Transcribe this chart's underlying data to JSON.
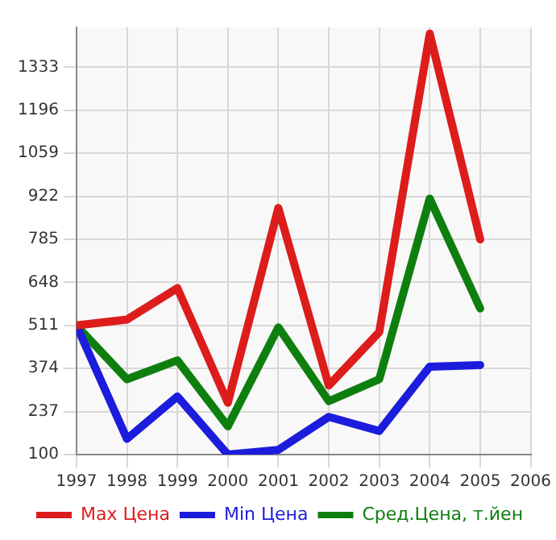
{
  "chart_data": {
    "type": "line",
    "x": [
      1997,
      1998,
      1999,
      2000,
      2001,
      2002,
      2003,
      2004,
      2005
    ],
    "series": [
      {
        "name": "Max Цена",
        "color": "#dd1c1c",
        "values": [
          511,
          530,
          630,
          265,
          885,
          320,
          490,
          1440,
          785
        ]
      },
      {
        "name": "Min Цена",
        "color": "#1c1cdd",
        "values": [
          511,
          150,
          285,
          100,
          115,
          220,
          175,
          380,
          385
        ]
      },
      {
        "name": "Сред.Цена, т.йен",
        "color": "#0e7f0e",
        "values": [
          511,
          340,
          400,
          190,
          505,
          270,
          340,
          915,
          565
        ]
      }
    ],
    "xlim": [
      1997,
      2006
    ],
    "xticks": [
      1997,
      1998,
      1999,
      2000,
      2001,
      2002,
      2003,
      2004,
      2005,
      2006
    ],
    "ylim": [
      100,
      1460
    ],
    "yticks": [
      100,
      237,
      374,
      511,
      648,
      785,
      922,
      1059,
      1196,
      1333
    ],
    "grid": true,
    "legend": "bottom",
    "marker": "none",
    "line_style": "solid"
  }
}
